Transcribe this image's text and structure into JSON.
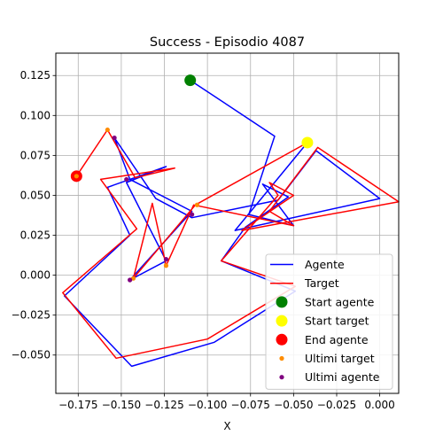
{
  "chart_data": {
    "type": "line",
    "title": "Success - Episodio 4087",
    "xlabel": "X",
    "ylabel": "",
    "xlim": [
      -0.188,
      0.011
    ],
    "ylim": [
      -0.074,
      0.139
    ],
    "xticks": [
      -0.175,
      -0.15,
      -0.125,
      -0.1,
      -0.075,
      -0.05,
      -0.025,
      0.0
    ],
    "xtick_labels": [
      "−0.175",
      "−0.150",
      "−0.125",
      "−0.100",
      "−0.075",
      "−0.050",
      "−0.025",
      "0.000"
    ],
    "yticks": [
      -0.05,
      -0.025,
      0.0,
      0.025,
      0.05,
      0.075,
      0.1,
      0.125
    ],
    "ytick_labels": [
      "−0.050",
      "−0.025",
      "0.000",
      "0.025",
      "0.050",
      "0.075",
      "0.100",
      "0.125"
    ],
    "grid": true,
    "legend_position": "lower-right",
    "series": [
      {
        "name": "Agente",
        "kind": "line",
        "color": "#0000ff",
        "points": [
          [
            -0.11,
            0.122
          ],
          [
            -0.061,
            0.087
          ],
          [
            -0.076,
            0.038
          ],
          [
            -0.05,
            0.031
          ],
          [
            -0.068,
            0.057
          ],
          [
            -0.053,
            0.049
          ],
          [
            -0.078,
            0.03
          ],
          [
            -0.092,
            0.009
          ],
          [
            -0.049,
            -0.01
          ],
          [
            -0.096,
            -0.042
          ],
          [
            -0.144,
            -0.057
          ],
          [
            -0.183,
            -0.013
          ],
          [
            -0.145,
            0.025
          ],
          [
            -0.158,
            0.055
          ],
          [
            -0.124,
            0.068
          ],
          [
            -0.147,
            0.058
          ],
          [
            -0.124,
            0.009
          ],
          [
            -0.145,
            -0.003
          ],
          [
            -0.109,
            0.04
          ],
          [
            -0.145,
            0.06
          ],
          [
            -0.154,
            0.086
          ],
          [
            -0.13,
            0.048
          ],
          [
            -0.109,
            0.036
          ],
          [
            -0.059,
            0.047
          ],
          [
            -0.037,
            0.078
          ],
          [
            0.0,
            0.048
          ],
          [
            -0.084,
            0.028
          ],
          [
            -0.042,
            0.083
          ]
        ]
      },
      {
        "name": "Target",
        "kind": "line",
        "color": "#ff0000",
        "points": [
          [
            -0.176,
            0.062
          ],
          [
            -0.158,
            0.091
          ],
          [
            -0.142,
            0.061
          ],
          [
            -0.119,
            0.067
          ],
          [
            -0.162,
            0.06
          ],
          [
            -0.141,
            0.029
          ],
          [
            -0.184,
            -0.011
          ],
          [
            -0.153,
            -0.052
          ],
          [
            -0.1,
            -0.04
          ],
          [
            -0.049,
            -0.007
          ],
          [
            -0.092,
            0.009
          ],
          [
            -0.059,
            0.05
          ],
          [
            -0.064,
            0.058
          ],
          [
            -0.05,
            0.05
          ],
          [
            -0.08,
            0.028
          ],
          [
            0.011,
            0.046
          ],
          [
            -0.036,
            0.08
          ],
          [
            -0.064,
            0.04
          ],
          [
            -0.05,
            0.031
          ],
          [
            -0.108,
            0.044
          ],
          [
            -0.124,
            0.006
          ],
          [
            -0.132,
            0.045
          ],
          [
            -0.143,
            -0.002
          ],
          [
            -0.107,
            0.044
          ],
          [
            -0.042,
            0.083
          ]
        ]
      },
      {
        "name": "Start agente",
        "kind": "marker",
        "color": "#008000",
        "points": [
          [
            -0.11,
            0.122
          ]
        ]
      },
      {
        "name": "Start target",
        "kind": "marker",
        "color": "#ffff00",
        "points": [
          [
            -0.042,
            0.083
          ]
        ]
      },
      {
        "name": "End agente",
        "kind": "marker",
        "color": "#ff0000",
        "points": [
          [
            -0.176,
            0.062
          ]
        ]
      },
      {
        "name": "Ultimi target",
        "kind": "dots",
        "color": "#ff8c00",
        "points": [
          [
            -0.158,
            0.091
          ],
          [
            -0.176,
            0.062
          ],
          [
            -0.124,
            0.006
          ],
          [
            -0.143,
            -0.002
          ],
          [
            -0.106,
            0.044
          ]
        ]
      },
      {
        "name": "Ultimi agente",
        "kind": "dots",
        "color": "#800080",
        "points": [
          [
            -0.154,
            0.086
          ],
          [
            -0.109,
            0.038
          ],
          [
            -0.124,
            0.01
          ],
          [
            -0.145,
            -0.003
          ],
          [
            -0.147,
            0.06
          ]
        ]
      }
    ]
  }
}
